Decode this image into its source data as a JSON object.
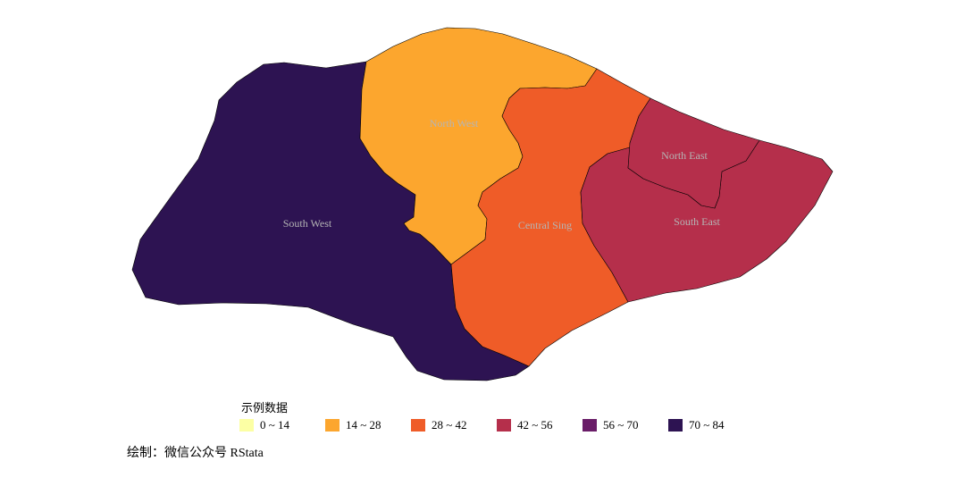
{
  "map": {
    "regions": [
      {
        "key": "south_west",
        "name": "South West",
        "bin": 5
      },
      {
        "key": "north_west",
        "name": "North West",
        "bin": 1
      },
      {
        "key": "central",
        "name": "Central Sing",
        "bin": 2
      },
      {
        "key": "south_east",
        "name": "South East",
        "bin": 3
      },
      {
        "key": "north_east",
        "name": "North East",
        "bin": 3
      }
    ]
  },
  "legend": {
    "title": "示例数据",
    "items": [
      {
        "label": "0 ~ 14",
        "color": "#fcffa4"
      },
      {
        "label": "14 ~ 28",
        "color": "#fca62e"
      },
      {
        "label": "28 ~ 42",
        "color": "#ef5c28"
      },
      {
        "label": "42 ~ 56",
        "color": "#b52f4b"
      },
      {
        "label": "56 ~ 70",
        "color": "#6a1d68"
      },
      {
        "label": "70 ~ 84",
        "color": "#2d1352"
      }
    ]
  },
  "caption": "绘制：微信公众号 RStata"
}
